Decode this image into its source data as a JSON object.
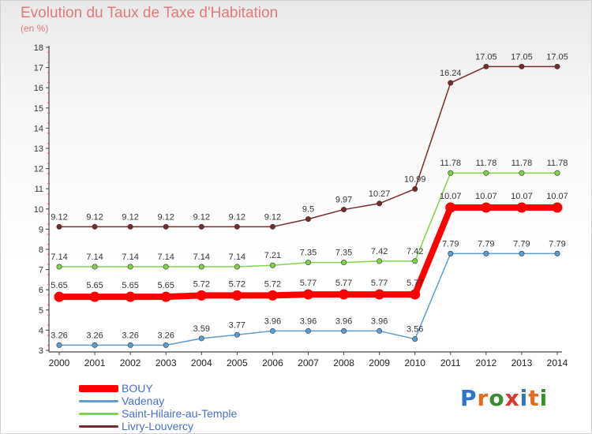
{
  "header": {
    "title": "Evolution du Taux de Taxe d'Habitation",
    "subtitle": "(en %)"
  },
  "logo": {
    "text": "Proxiti",
    "letter_colors": [
      "#2f74c9",
      "#e86a1c",
      "#3b8e2f",
      "#e0352b",
      "#2f74c9",
      "#e86a1c",
      "#3b8e2f"
    ]
  },
  "chart_data": {
    "type": "line",
    "title": "Evolution du Taux de Taxe d'Habitation",
    "subtitle": "(en %)",
    "xlabel": "",
    "ylabel": "",
    "x": [
      "2000",
      "2001",
      "2002",
      "2003",
      "2004",
      "2005",
      "2006",
      "2007",
      "2008",
      "2009",
      "2010",
      "2011",
      "2012",
      "2013",
      "2014"
    ],
    "yticks": [
      "3",
      "4",
      "5",
      "6",
      "7",
      "8",
      "9",
      "10",
      "11",
      "12",
      "13",
      "14",
      "15",
      "16",
      "17",
      "18"
    ],
    "ylim": [
      3,
      18
    ],
    "grid": false,
    "legend_position": "bottom-left",
    "series": [
      {
        "name": "BOUY",
        "color": "#ff0000",
        "values": [
          5.65,
          5.65,
          5.65,
          5.65,
          5.72,
          5.72,
          5.72,
          5.77,
          5.77,
          5.77,
          5.77,
          10.07,
          10.07,
          10.07,
          10.07
        ],
        "labels": [
          "5.65",
          "5.65",
          "5.65",
          "5.65",
          "5.72",
          "5.72",
          "5.72",
          "5.77",
          "5.77",
          "5.77",
          "5.77",
          "10.07",
          "10.07",
          "10.07",
          "10.07"
        ]
      },
      {
        "name": "Vadenay",
        "color": "#5a9fd4",
        "values": [
          3.26,
          3.26,
          3.26,
          3.26,
          3.59,
          3.77,
          3.96,
          3.96,
          3.96,
          3.96,
          3.56,
          7.79,
          7.79,
          7.79,
          7.79
        ],
        "labels": [
          "3.26",
          "3.26",
          "3.26",
          "3.26",
          "3.59",
          "3.77",
          "3.96",
          "3.96",
          "3.96",
          "3.96",
          "3.56",
          "7.79",
          "7.79",
          "7.79",
          "7.79"
        ]
      },
      {
        "name": "Saint-Hilaire-au-Temple",
        "color": "#7fd44a",
        "values": [
          7.14,
          7.14,
          7.14,
          7.14,
          7.14,
          7.14,
          7.21,
          7.35,
          7.35,
          7.42,
          7.42,
          11.78,
          11.78,
          11.78,
          11.78
        ],
        "labels": [
          "7.14",
          "7.14",
          "7.14",
          "7.14",
          "7.14",
          "7.14",
          "7.21",
          "7.35",
          "7.35",
          "7.42",
          "7.42",
          "11.78",
          "11.78",
          "11.78",
          "11.78"
        ]
      },
      {
        "name": "Livry-Louvercy",
        "color": "#7a2a2a",
        "values": [
          9.12,
          9.12,
          9.12,
          9.12,
          9.12,
          9.12,
          9.12,
          9.5,
          9.97,
          10.27,
          10.99,
          16.24,
          17.05,
          17.05,
          17.05
        ],
        "labels": [
          "9.12",
          "9.12",
          "9.12",
          "9.12",
          "9.12",
          "9.12",
          "9.12",
          "9.5",
          "9.97",
          "10.27",
          "10.99",
          "16.24",
          "17.05",
          "17.05",
          "17.05"
        ]
      }
    ]
  }
}
